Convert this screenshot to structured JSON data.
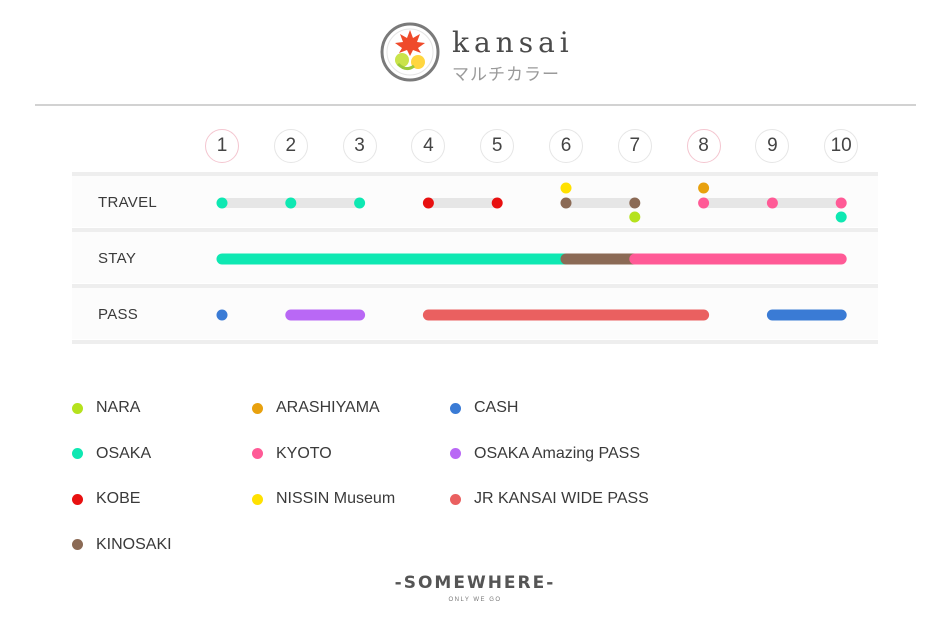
{
  "header": {
    "brand": "kansai",
    "subtitle": "マルチカラー"
  },
  "days": [
    "1",
    "2",
    "3",
    "4",
    "5",
    "6",
    "7",
    "8",
    "9",
    "10"
  ],
  "highlighted_days": [
    1,
    8
  ],
  "rows": {
    "travel": "TRAVEL",
    "stay": "STAY",
    "pass": "PASS"
  },
  "colors": {
    "NARA": "#b5e21d",
    "OSAKA": "#0ee8b2",
    "KOBE": "#e81010",
    "KINOSAKI": "#8b6a55",
    "ARASHIYAMA": "#e8a10e",
    "KYOTO": "#ff5a96",
    "NISSIN Museum": "#ffe100",
    "CASH": "#3a7bd5",
    "OSAKA Amazing PASS": "#b968f5",
    "JR KANSAI WIDE PASS": "#ea6060"
  },
  "chart_data": {
    "type": "timeline",
    "x": [
      1,
      2,
      3,
      4,
      5,
      6,
      7,
      8,
      9,
      10
    ],
    "rows": [
      "TRAVEL",
      "STAY",
      "PASS"
    ],
    "travel": {
      "segments": [
        {
          "from": 1,
          "to": 3
        },
        {
          "from": 4,
          "to": 5
        },
        {
          "from": 6,
          "to": 7
        },
        {
          "from": 8,
          "to": 10
        }
      ],
      "points": [
        {
          "day": 1,
          "location": "OSAKA"
        },
        {
          "day": 2,
          "location": "OSAKA"
        },
        {
          "day": 3,
          "location": "OSAKA"
        },
        {
          "day": 4,
          "location": "KOBE"
        },
        {
          "day": 5,
          "location": "KOBE"
        },
        {
          "day": 6,
          "location": "KINOSAKI"
        },
        {
          "day": 6,
          "location": "NISSIN Museum",
          "position": "above"
        },
        {
          "day": 7,
          "location": "KINOSAKI"
        },
        {
          "day": 7,
          "location": "NARA",
          "position": "below"
        },
        {
          "day": 8,
          "location": "KYOTO"
        },
        {
          "day": 8,
          "location": "ARASHIYAMA",
          "position": "above"
        },
        {
          "day": 9,
          "location": "KYOTO"
        },
        {
          "day": 10,
          "location": "KYOTO"
        },
        {
          "day": 10,
          "location": "OSAKA",
          "position": "below"
        }
      ]
    },
    "stay": [
      {
        "from": 1,
        "to": 6,
        "location": "OSAKA"
      },
      {
        "from": 6,
        "to": 7,
        "location": "KINOSAKI"
      },
      {
        "from": 7,
        "to": 10,
        "location": "KYOTO"
      }
    ],
    "pass": [
      {
        "from": 1,
        "to": 1,
        "pass": "CASH"
      },
      {
        "from": 2,
        "to": 3,
        "pass": "OSAKA Amazing PASS"
      },
      {
        "from": 4,
        "to": 8,
        "pass": "JR KANSAI WIDE PASS"
      },
      {
        "from": 9,
        "to": 10,
        "pass": "CASH"
      }
    ]
  },
  "legend": [
    [
      {
        "label": "NARA",
        "color": "#b5e21d"
      },
      {
        "label": "OSAKA",
        "color": "#0ee8b2"
      },
      {
        "label": "KOBE",
        "color": "#e81010"
      },
      {
        "label": "KINOSAKI",
        "color": "#8b6a55"
      }
    ],
    [
      {
        "label": "ARASHIYAMA",
        "color": "#e8a10e"
      },
      {
        "label": "KYOTO",
        "color": "#ff5a96"
      },
      {
        "label": "NISSIN Museum",
        "color": "#ffe100"
      }
    ],
    [
      {
        "label": "CASH",
        "color": "#3a7bd5"
      },
      {
        "label": "OSAKA Amazing PASS",
        "color": "#b968f5"
      },
      {
        "label": "JR KANSAI WIDE PASS",
        "color": "#ea6060"
      }
    ]
  ],
  "footer": {
    "brand": "-SOMEWHERE-",
    "tagline": "ONLY WE GO"
  }
}
